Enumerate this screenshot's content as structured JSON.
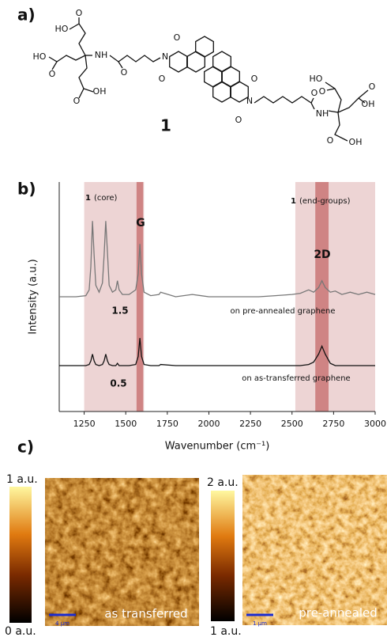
{
  "panel_labels": [
    "a)",
    "b)",
    "c)"
  ],
  "structure": {
    "compound_label": "1",
    "atom_labels": [
      "HO",
      "O",
      "HO",
      "O",
      "O",
      "OH",
      "NH",
      "O",
      "N",
      "O",
      "O",
      "N",
      "O",
      "O",
      "O",
      "NH",
      "HO",
      "O",
      "OH",
      "O",
      "O",
      "OH"
    ]
  },
  "chart_data": {
    "type": "line",
    "xlabel": "Wavenumber (cm⁻¹)",
    "ylabel": "Intensity (a.u.)",
    "xlim": [
      1100,
      3000
    ],
    "ylim": [
      0,
      10
    ],
    "xticks": [
      1250,
      1500,
      1750,
      2000,
      2250,
      2500,
      2750,
      3000
    ],
    "x": [
      1100,
      1200,
      1260,
      1280,
      1290,
      1300,
      1310,
      1320,
      1340,
      1360,
      1370,
      1380,
      1390,
      1400,
      1420,
      1440,
      1450,
      1460,
      1480,
      1520,
      1560,
      1575,
      1585,
      1595,
      1610,
      1650,
      1700,
      1710,
      1800,
      1900,
      2000,
      2100,
      2200,
      2300,
      2400,
      2500,
      2550,
      2600,
      2630,
      2660,
      2680,
      2700,
      2730,
      2760,
      2800,
      2850,
      2900,
      2950,
      3000
    ],
    "series": [
      {
        "name": "on pre-annealed graphene",
        "color": "#777777",
        "scale_label": "1.5",
        "values": [
          5.0,
          5.0,
          5.05,
          5.3,
          6.3,
          8.3,
          6.8,
          5.5,
          5.2,
          5.6,
          6.8,
          8.3,
          6.9,
          5.5,
          5.2,
          5.3,
          5.7,
          5.3,
          5.1,
          5.1,
          5.3,
          6.0,
          7.3,
          6.0,
          5.2,
          5.05,
          5.1,
          5.2,
          5.0,
          5.1,
          5.0,
          5.0,
          5.0,
          5.0,
          5.05,
          5.1,
          5.15,
          5.3,
          5.2,
          5.4,
          5.7,
          5.4,
          5.2,
          5.25,
          5.1,
          5.2,
          5.1,
          5.2,
          5.1
        ]
      },
      {
        "name": "on as-transferred graphene",
        "color": "#111111",
        "scale_label": "0.5",
        "values": [
          2.0,
          2.0,
          2.0,
          2.05,
          2.2,
          2.5,
          2.2,
          2.05,
          2.0,
          2.05,
          2.2,
          2.5,
          2.2,
          2.05,
          2.0,
          2.0,
          2.1,
          2.0,
          2.0,
          2.0,
          2.05,
          2.4,
          3.2,
          2.4,
          2.05,
          2.0,
          2.0,
          2.05,
          2.0,
          2.0,
          2.0,
          2.0,
          2.0,
          2.0,
          2.0,
          2.0,
          2.0,
          2.05,
          2.15,
          2.5,
          2.85,
          2.5,
          2.1,
          2.0,
          2.0,
          2.0,
          2.0,
          2.0,
          2.0
        ]
      }
    ],
    "bands": [
      {
        "range": [
          1250,
          1610
        ],
        "color": "#e6c2c2",
        "label_number": "1",
        "label": "(core)"
      },
      {
        "range": [
          2520,
          3000
        ],
        "color": "#e6c2c2",
        "label_number": "1",
        "label": "(end-groups)"
      },
      {
        "range": [
          1565,
          1605
        ],
        "color": "#c46a6a",
        "label": "G"
      },
      {
        "range": [
          2640,
          2720
        ],
        "color": "#c46a6a",
        "label": "2D"
      }
    ]
  },
  "maps": [
    {
      "title": "as transferred",
      "scale_max": "1 a.u.",
      "scale_min": "0 a.u.",
      "scale_bar": "4 µm"
    },
    {
      "title": "pre-annealed",
      "scale_max": "2 a.u.",
      "scale_min": "1 a.u.",
      "scale_bar": "1 µm"
    }
  ]
}
